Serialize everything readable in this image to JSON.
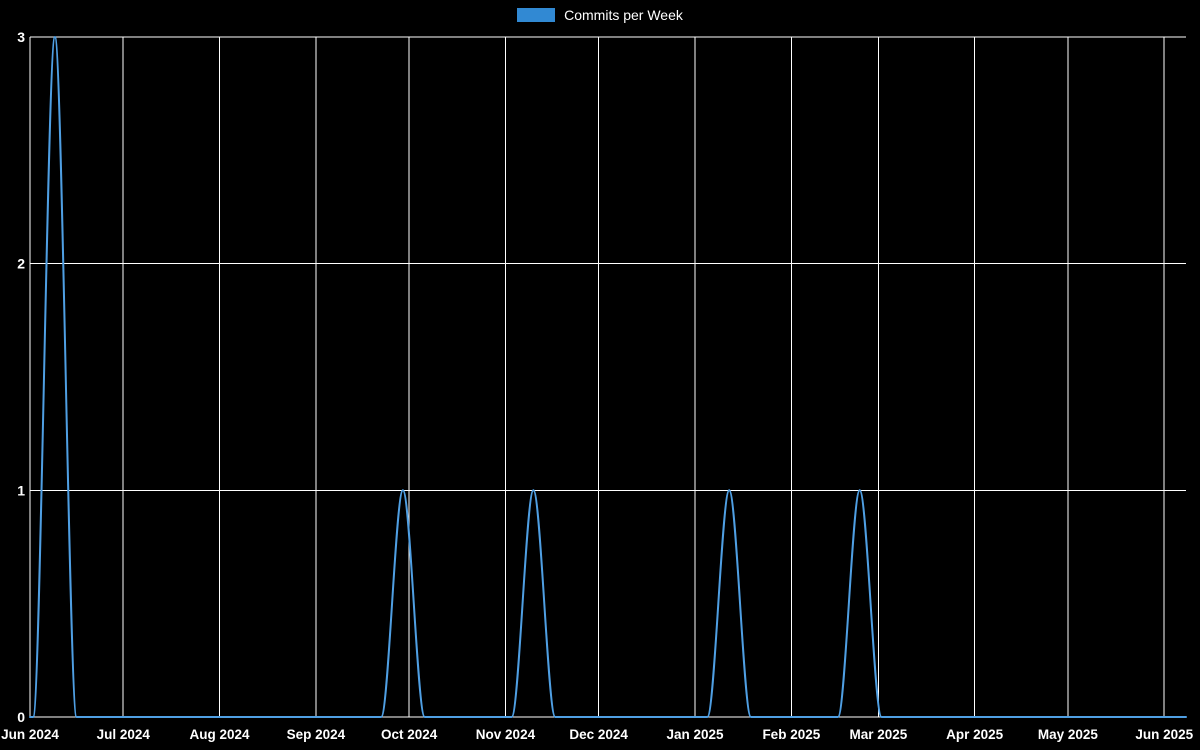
{
  "chart_data": {
    "type": "line",
    "title": "Commits per Week",
    "xlabel": "",
    "ylabel": "",
    "legend_position": "top",
    "background": "#000000",
    "grid_color": "#ffffff",
    "text_color": "#ffffff",
    "line_color": "#4f9fe3",
    "swatch_color": "#3189d3",
    "grid": "on",
    "ylim": [
      0,
      3
    ],
    "y_ticks": [
      0,
      1,
      2,
      3
    ],
    "x_domain": [
      "2024-06-01",
      "2025-06-08"
    ],
    "x_ticks": [
      {
        "date": "2024-06-01",
        "label": "Jun 2024"
      },
      {
        "date": "2024-07-01",
        "label": "Jul 2024"
      },
      {
        "date": "2024-08-01",
        "label": "Aug 2024"
      },
      {
        "date": "2024-09-01",
        "label": "Sep 2024"
      },
      {
        "date": "2024-10-01",
        "label": "Oct 2024"
      },
      {
        "date": "2024-11-01",
        "label": "Nov 2024"
      },
      {
        "date": "2024-12-01",
        "label": "Dec 2024"
      },
      {
        "date": "2025-01-01",
        "label": "Jan 2025"
      },
      {
        "date": "2025-02-01",
        "label": "Feb 2025"
      },
      {
        "date": "2025-03-01",
        "label": "Mar 2025"
      },
      {
        "date": "2025-04-01",
        "label": "Apr 2025"
      },
      {
        "date": "2025-05-01",
        "label": "May 2025"
      },
      {
        "date": "2025-06-01",
        "label": "Jun 2025"
      }
    ],
    "series": [
      {
        "name": "Commits per Week",
        "points": [
          {
            "date": "2024-06-01",
            "value": 0
          },
          {
            "date": "2024-06-02",
            "value": 0
          },
          {
            "date": "2024-06-09",
            "value": 3
          },
          {
            "date": "2024-06-16",
            "value": 0
          },
          {
            "date": "2024-09-22",
            "value": 0
          },
          {
            "date": "2024-09-29",
            "value": 1
          },
          {
            "date": "2024-10-06",
            "value": 0
          },
          {
            "date": "2024-11-03",
            "value": 0
          },
          {
            "date": "2024-11-10",
            "value": 1
          },
          {
            "date": "2024-11-17",
            "value": 0
          },
          {
            "date": "2025-01-05",
            "value": 0
          },
          {
            "date": "2025-01-12",
            "value": 1
          },
          {
            "date": "2025-01-19",
            "value": 0
          },
          {
            "date": "2025-02-16",
            "value": 0
          },
          {
            "date": "2025-02-23",
            "value": 1
          },
          {
            "date": "2025-03-02",
            "value": 0
          },
          {
            "date": "2025-06-08",
            "value": 0
          }
        ]
      }
    ]
  }
}
